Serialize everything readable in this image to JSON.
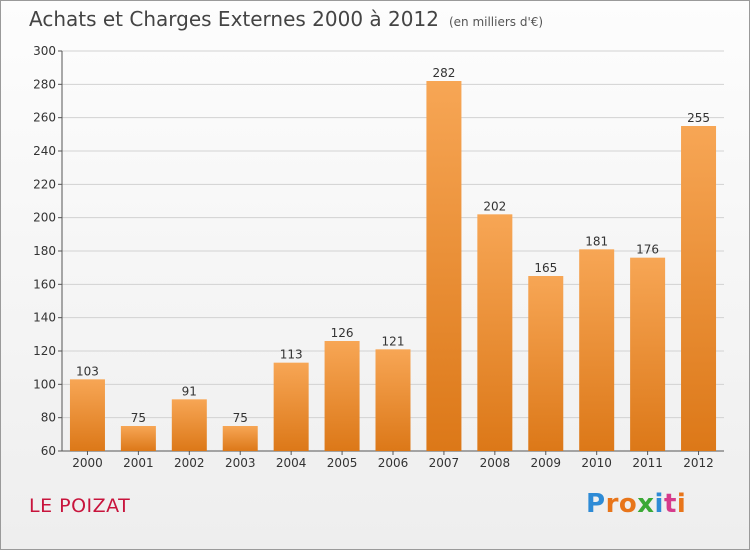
{
  "title": "Achats et Charges Externes 2000 à 2012",
  "unit_note": "(en milliers d'€)",
  "commune": "LE POIZAT",
  "brand": {
    "name": "Proxiti",
    "letter_colors": [
      "#2e8bd6",
      "#e8751a",
      "#e8751a",
      "#3aa935",
      "#2e8bd6",
      "#d63a8c",
      "#e8751a"
    ]
  },
  "colors": {
    "bar_light": "#f7a655",
    "bar_dark": "#dc7818",
    "commune": "#c8143c"
  },
  "chart_data": {
    "type": "bar",
    "categories": [
      "2000",
      "2001",
      "2002",
      "2003",
      "2004",
      "2005",
      "2006",
      "2007",
      "2008",
      "2009",
      "2010",
      "2011",
      "2012"
    ],
    "values": [
      103,
      75,
      91,
      75,
      113,
      126,
      121,
      282,
      202,
      165,
      181,
      176,
      255
    ],
    "ylim": [
      60,
      300
    ],
    "yticks": [
      60,
      80,
      100,
      120,
      140,
      160,
      180,
      200,
      220,
      240,
      260,
      280,
      300
    ],
    "grid": true,
    "xlabel": "",
    "ylabel": ""
  }
}
